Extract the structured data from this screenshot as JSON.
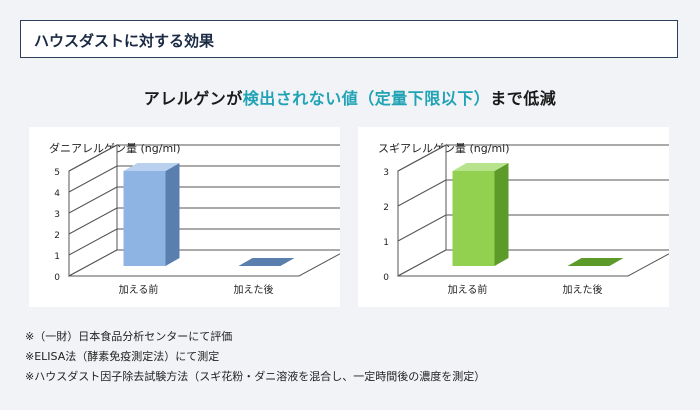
{
  "header": {
    "title": "ハウスダストに対する効果"
  },
  "headline": {
    "prefix": "アレルゲンが",
    "highlight": "検出されない値（定量下限以下）",
    "suffix": "まで低減"
  },
  "chart_data": [
    {
      "type": "bar",
      "title": "ダニアレルゲン量 (ng/ml)",
      "categories": [
        "加える前",
        "加えた後"
      ],
      "values": [
        5,
        0
      ],
      "ylim": [
        0,
        5
      ],
      "yticks": [
        "0",
        "1",
        "2",
        "3",
        "4",
        "5"
      ],
      "color": "#8eb4e3",
      "side_color": "#5a7fae",
      "top_color": "#b9d0ee",
      "grid": true
    },
    {
      "type": "bar",
      "title": "スギアレルゲン量 (ng/ml)",
      "categories": [
        "加える前",
        "加えた後"
      ],
      "values": [
        3,
        0
      ],
      "ylim": [
        0,
        3
      ],
      "yticks": [
        "0",
        "1",
        "2",
        "3"
      ],
      "color": "#92d050",
      "side_color": "#5c9a2a",
      "top_color": "#b7e38c",
      "grid": true
    }
  ],
  "notes": [
    "※（一財）日本食品分析センターにて評価",
    "※ELISA法（酵素免疫測定法）にて測定",
    "※ハウスダスト因子除去試験方法（スギ花粉・ダニ溶液を混合し、一定時間後の濃度を測定）"
  ]
}
